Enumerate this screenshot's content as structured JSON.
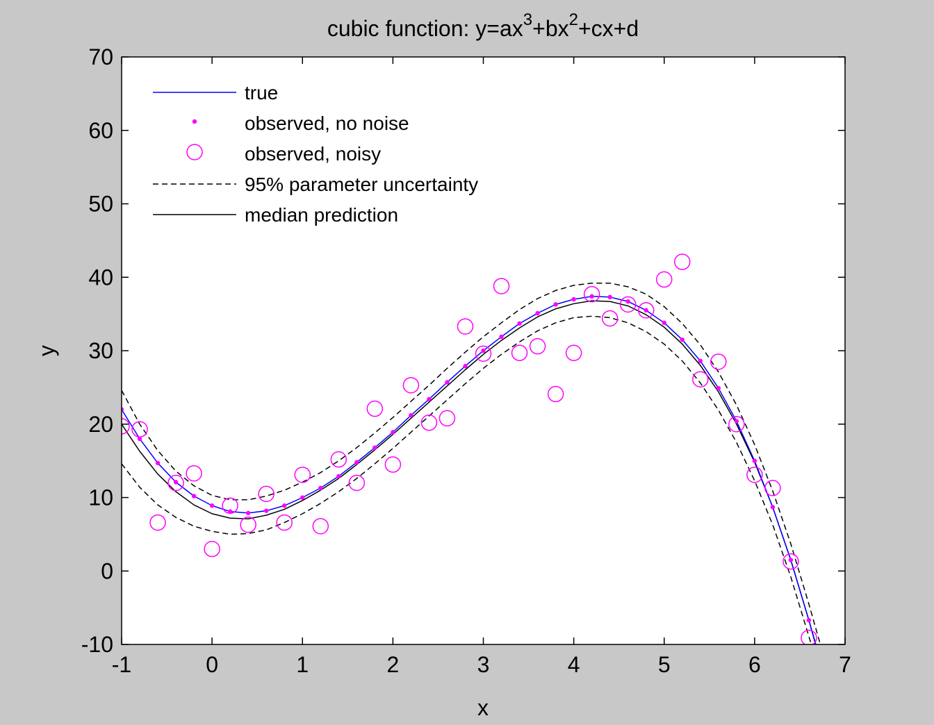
{
  "chart_data": {
    "type": "line",
    "title": "cubic function: y=ax³+bx²+cx+d",
    "title_parts": {
      "prefix": "cubic function: y=ax",
      "exp1": "3",
      "mid": "+bx",
      "exp2": "2",
      "suffix": "+cx+d"
    },
    "xlabel": "x",
    "ylabel": "y",
    "xlim": [
      -1,
      7
    ],
    "ylim": [
      -10,
      70
    ],
    "xticks": [
      -1,
      0,
      1,
      2,
      3,
      4,
      5,
      6,
      7
    ],
    "yticks": [
      -10,
      0,
      10,
      20,
      30,
      40,
      50,
      60,
      70
    ],
    "grid": false,
    "legend_position": "top-left",
    "legend": [
      "true",
      "observed, no noise",
      "observed, noisy",
      "95% parameter uncertainty",
      "median prediction"
    ],
    "colors": {
      "true": "#0000ff",
      "observed": "#ff00ff",
      "prediction": "#000000",
      "background": "#c8c8c8",
      "plot_area": "#ffffff"
    },
    "series": [
      {
        "name": "true",
        "style": "solid-blue",
        "x": [
          -1.0,
          -0.8,
          -0.6,
          -0.4,
          -0.2,
          0.0,
          0.2,
          0.4,
          0.6,
          0.8,
          1.0,
          1.2,
          1.4,
          1.6,
          1.8,
          2.0,
          2.2,
          2.4,
          2.6,
          2.8,
          3.0,
          3.2,
          3.4,
          3.6,
          3.8,
          4.0,
          4.2,
          4.4,
          4.6,
          4.8,
          5.0,
          5.2,
          5.4,
          5.6,
          5.8,
          6.0,
          6.2,
          6.4,
          6.6,
          6.7
        ],
        "y": [
          22.0,
          18.0,
          14.7,
          12.1,
          10.2,
          8.9,
          8.1,
          7.9,
          8.2,
          8.9,
          10.0,
          11.3,
          12.9,
          14.8,
          16.8,
          18.9,
          21.2,
          23.4,
          25.7,
          27.9,
          30.0,
          31.9,
          33.7,
          35.1,
          36.3,
          37.0,
          37.4,
          37.3,
          36.7,
          35.5,
          33.8,
          31.5,
          28.6,
          24.9,
          20.4,
          15.0,
          8.7,
          1.5,
          -6.7,
          -11.2
        ]
      },
      {
        "name": "observed, no noise",
        "style": "magenta-dots",
        "x": [
          -1.0,
          -0.8,
          -0.6,
          -0.4,
          -0.2,
          0.0,
          0.2,
          0.4,
          0.6,
          0.8,
          1.0,
          1.2,
          1.4,
          1.6,
          1.8,
          2.0,
          2.2,
          2.4,
          2.6,
          2.8,
          3.0,
          3.2,
          3.4,
          3.6,
          3.8,
          4.0,
          4.2,
          4.4,
          4.6,
          4.8,
          5.0,
          5.2,
          5.4,
          5.6,
          5.8,
          6.0,
          6.2,
          6.4,
          6.6
        ],
        "y": [
          22.0,
          18.0,
          14.7,
          12.1,
          10.2,
          8.9,
          8.1,
          7.9,
          8.2,
          8.9,
          10.0,
          11.3,
          12.9,
          14.8,
          16.8,
          18.9,
          21.2,
          23.4,
          25.7,
          27.9,
          30.0,
          31.9,
          33.7,
          35.1,
          36.3,
          37.0,
          37.4,
          37.3,
          36.7,
          35.5,
          33.8,
          31.5,
          28.6,
          24.9,
          20.4,
          15.0,
          8.7,
          1.5,
          -6.7
        ]
      },
      {
        "name": "observed, noisy",
        "style": "magenta-circles",
        "x": [
          -1.0,
          -0.8,
          -0.6,
          -0.4,
          -0.2,
          0.0,
          0.2,
          0.4,
          0.6,
          0.8,
          1.0,
          1.2,
          1.4,
          1.6,
          1.8,
          2.0,
          2.2,
          2.4,
          2.6,
          2.8,
          3.0,
          3.2,
          3.4,
          3.6,
          3.8,
          4.0,
          4.2,
          4.4,
          4.6,
          4.8,
          5.0,
          5.2,
          5.4,
          5.6,
          5.8,
          6.0,
          6.2,
          6.4,
          6.6
        ],
        "y": [
          19.7,
          19.3,
          6.6,
          12.0,
          13.3,
          3.0,
          8.9,
          6.3,
          10.5,
          6.6,
          13.1,
          6.1,
          15.2,
          12.0,
          22.1,
          14.5,
          25.3,
          20.2,
          20.8,
          33.3,
          29.6,
          38.8,
          29.7,
          30.6,
          24.1,
          29.7,
          37.7,
          34.4,
          36.3,
          35.5,
          39.7,
          42.1,
          26.1,
          28.5,
          20.0,
          13.1,
          11.3,
          1.3,
          -9.1
        ]
      },
      {
        "name": "95% parameter uncertainty",
        "style": "black-dashed",
        "x": [
          -1.0,
          -0.8,
          -0.6,
          -0.4,
          -0.2,
          0.0,
          0.2,
          0.4,
          0.6,
          0.8,
          1.0,
          1.2,
          1.4,
          1.6,
          1.8,
          2.0,
          2.2,
          2.4,
          2.6,
          2.8,
          3.0,
          3.2,
          3.4,
          3.6,
          3.8,
          4.0,
          4.2,
          4.4,
          4.6,
          4.8,
          5.0,
          5.2,
          5.4,
          5.6,
          5.8,
          6.0,
          6.2,
          6.4,
          6.6,
          6.75
        ],
        "y": [
          24.6,
          20.0,
          16.4,
          13.6,
          11.6,
          10.3,
          9.7,
          9.7,
          10.2,
          11.0,
          12.1,
          13.4,
          15.0,
          16.8,
          18.8,
          20.9,
          23.1,
          25.3,
          27.6,
          29.8,
          31.9,
          33.8,
          35.6,
          37.1,
          38.2,
          38.9,
          39.2,
          39.2,
          38.7,
          37.7,
          36.0,
          33.7,
          30.8,
          27.1,
          22.6,
          17.2,
          10.9,
          3.7,
          -4.5,
          -11.0
        ]
      },
      {
        "name": "95% parameter uncertainty",
        "style": "black-dashed",
        "x": [
          -1.0,
          -0.8,
          -0.6,
          -0.4,
          -0.2,
          0.0,
          0.2,
          0.4,
          0.6,
          0.8,
          1.0,
          1.2,
          1.4,
          1.6,
          1.8,
          2.0,
          2.2,
          2.4,
          2.6,
          2.8,
          3.0,
          3.2,
          3.4,
          3.6,
          3.8,
          4.0,
          4.2,
          4.4,
          4.6,
          4.8,
          5.0,
          5.2,
          5.4,
          5.6,
          5.8,
          6.0,
          6.2,
          6.4,
          6.6,
          6.65
        ],
        "y": [
          14.6,
          11.4,
          9.0,
          7.3,
          6.1,
          5.4,
          5.0,
          5.1,
          5.6,
          6.6,
          7.8,
          9.2,
          10.8,
          12.6,
          14.6,
          16.7,
          18.9,
          21.1,
          23.3,
          25.5,
          27.6,
          29.5,
          31.2,
          32.7,
          33.8,
          34.5,
          34.7,
          34.5,
          33.8,
          32.6,
          30.9,
          28.6,
          25.6,
          21.9,
          17.5,
          12.3,
          6.3,
          -0.8,
          -8.9,
          -11.0
        ]
      },
      {
        "name": "median prediction",
        "style": "black-solid",
        "x": [
          -1.0,
          -0.8,
          -0.6,
          -0.4,
          -0.2,
          0.0,
          0.2,
          0.4,
          0.6,
          0.8,
          1.0,
          1.2,
          1.4,
          1.6,
          1.8,
          2.0,
          2.2,
          2.4,
          2.6,
          2.8,
          3.0,
          3.2,
          3.4,
          3.6,
          3.8,
          4.0,
          4.2,
          4.4,
          4.6,
          4.8,
          5.0,
          5.2,
          5.4,
          5.6,
          5.8,
          6.0,
          6.2,
          6.4,
          6.6,
          6.7
        ],
        "y": [
          20.0,
          16.3,
          13.2,
          10.8,
          9.0,
          7.8,
          7.2,
          7.1,
          7.6,
          8.4,
          9.6,
          11.0,
          12.6,
          14.5,
          16.5,
          18.6,
          20.8,
          23.0,
          25.2,
          27.4,
          29.5,
          31.4,
          33.1,
          34.6,
          35.7,
          36.4,
          36.8,
          36.7,
          36.1,
          34.9,
          33.2,
          30.9,
          28.0,
          24.4,
          20.0,
          14.8,
          8.7,
          1.5,
          -6.7,
          -11.0
        ]
      }
    ]
  }
}
